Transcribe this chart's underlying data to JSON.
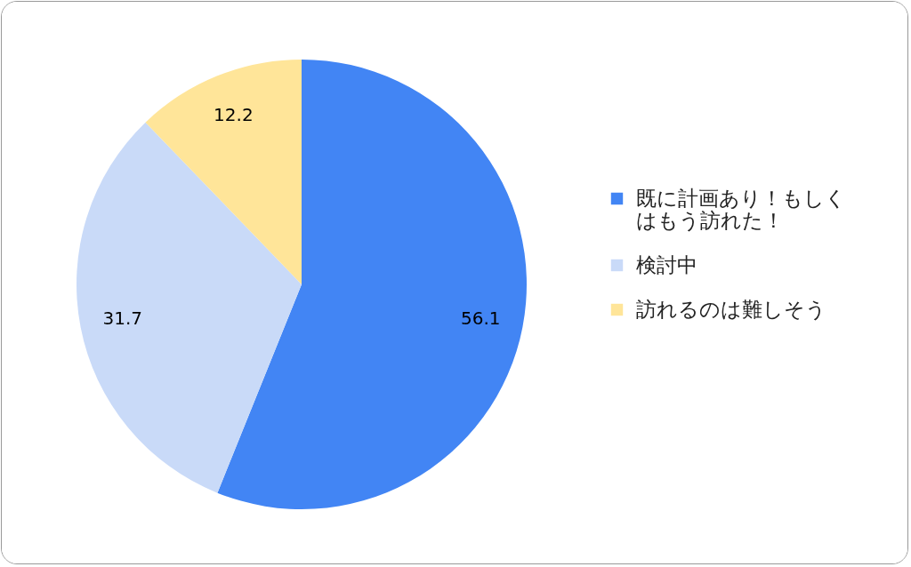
{
  "chart_data": {
    "type": "pie",
    "categories": [
      "既に計画あり！もしくはもう訪れた！",
      "検討中",
      "訪れるのは難しそう"
    ],
    "values": [
      56.1,
      31.7,
      12.2
    ],
    "colors": [
      "#4285f4",
      "#c9daf8",
      "#ffe599"
    ],
    "data_labels": true,
    "legend": "right"
  }
}
